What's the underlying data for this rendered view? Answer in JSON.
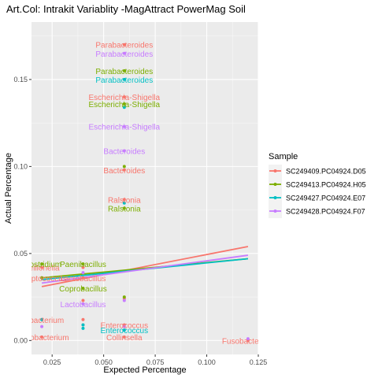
{
  "chart_data": {
    "type": "scatter",
    "title": "Art.Col: Intrakit Variablity -MagAttract PowerMag Soil",
    "xlabel": "Expected Percentage",
    "ylabel": "Actual Percentage",
    "xlim": [
      0.015,
      0.125
    ],
    "ylim": [
      -0.008,
      0.183
    ],
    "x_ticks": [
      0.025,
      0.05,
      0.075,
      0.1,
      0.125
    ],
    "x_tick_labels": [
      "0.025",
      "0.050",
      "0.075",
      "0.100",
      "0.125"
    ],
    "y_ticks": [
      0.0,
      0.05,
      0.1,
      0.15
    ],
    "y_tick_labels": [
      "0.00",
      "0.05",
      "0.10",
      "0.15"
    ],
    "grid": true,
    "legend_position": "right",
    "legend_title": "Sample",
    "series": [
      {
        "name": "SC249409.PC04924.D05",
        "color": "#F8766D",
        "points": [
          {
            "x": 0.06,
            "y": 0.17,
            "label": "Parabacteroides"
          },
          {
            "x": 0.06,
            "y": 0.14,
            "label": "Escherichia-Shigella"
          },
          {
            "x": 0.06,
            "y": 0.098,
            "label": "Bacteroides"
          },
          {
            "x": 0.06,
            "y": 0.081,
            "label": "Ralstonia"
          },
          {
            "x": 0.06,
            "y": 0.024,
            "label": ""
          },
          {
            "x": 0.04,
            "y": 0.042,
            "label": ""
          },
          {
            "x": 0.04,
            "y": 0.036,
            "label": "Lactobacillus"
          },
          {
            "x": 0.04,
            "y": 0.023,
            "label": ""
          },
          {
            "x": 0.04,
            "y": 0.012,
            "label": ""
          },
          {
            "x": 0.04,
            "y": 0.009,
            "label": ""
          },
          {
            "x": 0.06,
            "y": 0.009,
            "label": "Enterococcus"
          },
          {
            "x": 0.06,
            "y": 0.002,
            "label": "Collinsella"
          },
          {
            "x": 0.02,
            "y": 0.042,
            "label": "Veillonella"
          },
          {
            "x": 0.02,
            "y": 0.036,
            "label": "Streptococcus"
          },
          {
            "x": 0.02,
            "y": 0.012,
            "label": "Eubacterium"
          },
          {
            "x": 0.02,
            "y": 0.002,
            "label": "Bifidobacterium"
          },
          {
            "x": 0.12,
            "y": 0.0,
            "label": "Fusobacterium"
          }
        ],
        "trend": {
          "x": [
            0.02,
            0.12
          ],
          "y": [
            0.031,
            0.054
          ]
        }
      },
      {
        "name": "SC249413.PC04924.H05",
        "color": "#7CAE00",
        "points": [
          {
            "x": 0.06,
            "y": 0.155,
            "label": "Parabacteroides"
          },
          {
            "x": 0.06,
            "y": 0.136,
            "label": "Escherichia-Shigella"
          },
          {
            "x": 0.06,
            "y": 0.1,
            "label": ""
          },
          {
            "x": 0.06,
            "y": 0.076,
            "label": "Ralstonia"
          },
          {
            "x": 0.06,
            "y": 0.025,
            "label": ""
          },
          {
            "x": 0.04,
            "y": 0.044,
            "label": "Paenibacillus"
          },
          {
            "x": 0.04,
            "y": 0.03,
            "label": "Coprobacillus"
          },
          {
            "x": 0.02,
            "y": 0.044,
            "label": "Clostridium"
          },
          {
            "x": 0.02,
            "y": 0.036,
            "label": ""
          }
        ],
        "trend": {
          "x": [
            0.02,
            0.12
          ],
          "y": [
            0.036,
            0.047
          ]
        }
      },
      {
        "name": "SC249427.PC04924.E07",
        "color": "#00BFC4",
        "points": [
          {
            "x": 0.06,
            "y": 0.15,
            "label": "Parabacteroides"
          },
          {
            "x": 0.06,
            "y": 0.134,
            "label": ""
          },
          {
            "x": 0.06,
            "y": 0.079,
            "label": ""
          },
          {
            "x": 0.06,
            "y": 0.006,
            "label": "Enterococcus"
          },
          {
            "x": 0.04,
            "y": 0.009,
            "label": ""
          },
          {
            "x": 0.04,
            "y": 0.007,
            "label": ""
          },
          {
            "x": 0.02,
            "y": 0.012,
            "label": ""
          }
        ],
        "trend": {
          "x": [
            0.02,
            0.12
          ],
          "y": [
            0.035,
            0.047
          ]
        }
      },
      {
        "name": "SC249428.PC04924.F07",
        "color": "#C77CFF",
        "points": [
          {
            "x": 0.06,
            "y": 0.165,
            "label": "Parabacteroides"
          },
          {
            "x": 0.06,
            "y": 0.123,
            "label": "Escherichia-Shigella"
          },
          {
            "x": 0.06,
            "y": 0.109,
            "label": "Bacteroides"
          },
          {
            "x": 0.06,
            "y": 0.023,
            "label": ""
          },
          {
            "x": 0.06,
            "y": 0.008,
            "label": ""
          },
          {
            "x": 0.04,
            "y": 0.039,
            "label": ""
          },
          {
            "x": 0.04,
            "y": 0.021,
            "label": "Lactobacillus"
          },
          {
            "x": 0.02,
            "y": 0.008,
            "label": ""
          },
          {
            "x": 0.12,
            "y": 0.001,
            "label": ""
          }
        ],
        "trend": {
          "x": [
            0.02,
            0.12
          ],
          "y": [
            0.033,
            0.049
          ]
        }
      }
    ]
  }
}
